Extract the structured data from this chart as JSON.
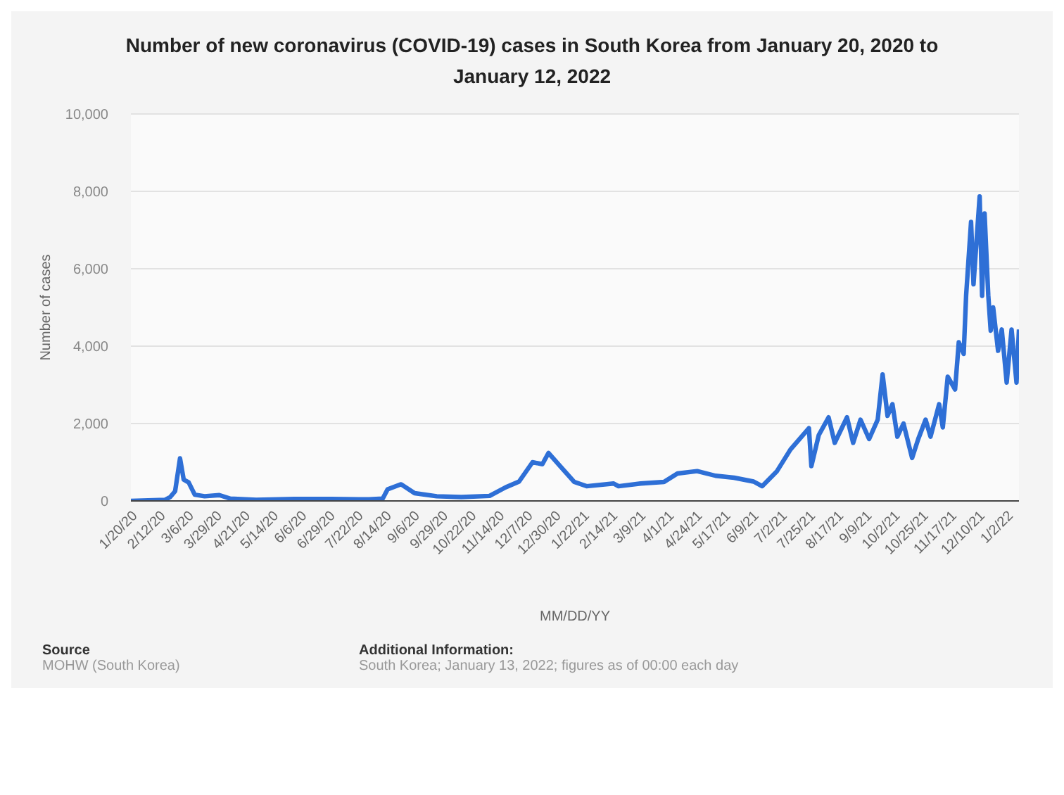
{
  "chart_data": {
    "type": "line",
    "title": "Number of new coronavirus (COVID-19) cases in South Korea from January 20, 2020 to January 12, 2022",
    "xlabel": "MM/DD/YY",
    "ylabel": "Number of cases",
    "x": [
      "2020-01-20",
      "2020-02-17",
      "2020-02-21",
      "2020-02-25",
      "2020-02-29",
      "2020-03-03",
      "2020-03-07",
      "2020-03-12",
      "2020-03-20",
      "2020-04-01",
      "2020-04-10",
      "2020-05-01",
      "2020-06-01",
      "2020-07-01",
      "2020-08-01",
      "2020-08-12",
      "2020-08-16",
      "2020-08-27",
      "2020-09-07",
      "2020-09-25",
      "2020-10-15",
      "2020-11-07",
      "2020-11-20",
      "2020-12-01",
      "2020-12-12",
      "2020-12-20",
      "2020-12-25",
      "2021-01-04",
      "2021-01-15",
      "2021-01-25",
      "2021-02-16",
      "2021-02-20",
      "2021-03-10",
      "2021-03-29",
      "2021-04-09",
      "2021-04-25",
      "2021-05-10",
      "2021-05-25",
      "2021-06-10",
      "2021-06-17",
      "2021-06-29",
      "2021-07-10",
      "2021-07-25",
      "2021-07-27",
      "2021-08-02",
      "2021-08-10",
      "2021-08-15",
      "2021-08-25",
      "2021-08-30",
      "2021-09-05",
      "2021-09-12",
      "2021-09-19",
      "2021-09-23",
      "2021-09-27",
      "2021-10-01",
      "2021-10-05",
      "2021-10-10",
      "2021-10-17",
      "2021-10-22",
      "2021-10-28",
      "2021-11-01",
      "2021-11-08",
      "2021-11-11",
      "2021-11-15",
      "2021-11-21",
      "2021-11-24",
      "2021-11-28",
      "2021-11-30",
      "2021-12-04",
      "2021-12-06",
      "2021-12-11",
      "2021-12-13",
      "2021-12-15",
      "2021-12-18",
      "2021-12-20",
      "2021-12-22",
      "2021-12-26",
      "2021-12-29",
      "2022-01-02",
      "2022-01-06",
      "2022-01-10",
      "2022-01-12"
    ],
    "series": [
      {
        "color": "#2e6fd6",
        "values": [
          0,
          30,
          100,
          250,
          1100,
          550,
          480,
          160,
          120,
          150,
          60,
          30,
          50,
          50,
          40,
          60,
          300,
          430,
          200,
          120,
          100,
          130,
          350,
          500,
          1000,
          950,
          1240,
          880,
          490,
          380,
          450,
          380,
          450,
          490,
          710,
          770,
          650,
          600,
          500,
          380,
          770,
          1330,
          1880,
          900,
          1700,
          2160,
          1500,
          2160,
          1500,
          2100,
          1600,
          2100,
          3270,
          2200,
          2500,
          1660,
          2000,
          1110,
          1600,
          2100,
          1660,
          2500,
          1900,
          3210,
          2880,
          4100,
          3800,
          5320,
          7210,
          5600,
          7870,
          5300,
          7430,
          5320,
          4400,
          5000,
          3880,
          4430,
          3060,
          4430,
          3060,
          4430
        ]
      }
    ],
    "xlim": [
      "2020-01-20",
      "2022-01-12"
    ],
    "xticks": [
      {
        "value": "2020-01-20",
        "label": "1/20/20"
      },
      {
        "value": "2020-02-12",
        "label": "2/12/20"
      },
      {
        "value": "2020-03-06",
        "label": "3/6/20"
      },
      {
        "value": "2020-03-29",
        "label": "3/29/20"
      },
      {
        "value": "2020-04-21",
        "label": "4/21/20"
      },
      {
        "value": "2020-05-14",
        "label": "5/14/20"
      },
      {
        "value": "2020-06-06",
        "label": "6/6/20"
      },
      {
        "value": "2020-06-29",
        "label": "6/29/20"
      },
      {
        "value": "2020-07-22",
        "label": "7/22/20"
      },
      {
        "value": "2020-08-14",
        "label": "8/14/20"
      },
      {
        "value": "2020-09-06",
        "label": "9/6/20"
      },
      {
        "value": "2020-09-29",
        "label": "9/29/20"
      },
      {
        "value": "2020-10-22",
        "label": "10/22/20"
      },
      {
        "value": "2020-11-14",
        "label": "11/14/20"
      },
      {
        "value": "2020-12-07",
        "label": "12/7/20"
      },
      {
        "value": "2020-12-30",
        "label": "12/30/20"
      },
      {
        "value": "2021-01-22",
        "label": "1/22/21"
      },
      {
        "value": "2021-02-14",
        "label": "2/14/21"
      },
      {
        "value": "2021-03-09",
        "label": "3/9/21"
      },
      {
        "value": "2021-04-01",
        "label": "4/1/21"
      },
      {
        "value": "2021-04-24",
        "label": "4/24/21"
      },
      {
        "value": "2021-05-17",
        "label": "5/17/21"
      },
      {
        "value": "2021-06-09",
        "label": "6/9/21"
      },
      {
        "value": "2021-07-02",
        "label": "7/2/21"
      },
      {
        "value": "2021-07-25",
        "label": "7/25/21"
      },
      {
        "value": "2021-08-17",
        "label": "8/17/21"
      },
      {
        "value": "2021-09-09",
        "label": "9/9/21"
      },
      {
        "value": "2021-10-02",
        "label": "10/2/21"
      },
      {
        "value": "2021-10-25",
        "label": "10/25/21"
      },
      {
        "value": "2021-11-17",
        "label": "11/17/21"
      },
      {
        "value": "2021-12-10",
        "label": "12/10/21"
      },
      {
        "value": "2022-01-02",
        "label": "1/2/22"
      }
    ],
    "ylim": [
      0,
      10000
    ],
    "yticks": [
      {
        "value": 0,
        "label": "0"
      },
      {
        "value": 2000,
        "label": "2,000"
      },
      {
        "value": 4000,
        "label": "4,000"
      },
      {
        "value": 6000,
        "label": "6,000"
      },
      {
        "value": 8000,
        "label": "8,000"
      },
      {
        "value": 10000,
        "label": "10,000"
      }
    ],
    "grid": "y",
    "marker": "none",
    "line_style": "solid",
    "annotations": [
      "Source",
      "MOHW (South Korea)",
      "Additional Information:",
      "South Korea; January 13, 2022; figures as of 00:00 each day"
    ]
  }
}
